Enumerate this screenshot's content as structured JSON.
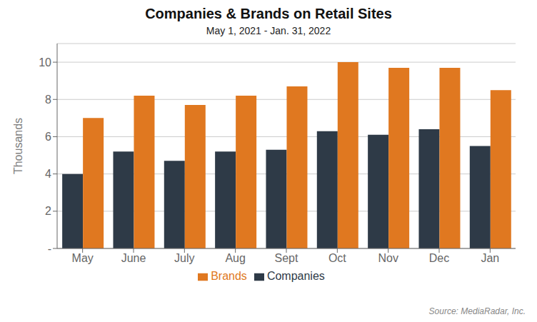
{
  "chart_data": {
    "type": "bar",
    "title": "Companies & Brands on Retail Sites",
    "subtitle": "May 1, 2021 - Jan. 31, 2022",
    "ylabel": "Thousands",
    "annotations": [
      "Source: MediaRadar, Inc."
    ],
    "categories": [
      "May",
      "June",
      "July",
      "Aug",
      "Sept",
      "Oct",
      "Nov",
      "Dec",
      "Jan"
    ],
    "series": [
      {
        "name": "Companies",
        "color": "#2E3A47",
        "values": [
          4.0,
          5.2,
          4.7,
          5.2,
          5.3,
          6.3,
          6.1,
          6.4,
          5.5
        ]
      },
      {
        "name": "Brands",
        "color": "#E07820",
        "values": [
          7.0,
          8.2,
          7.7,
          8.2,
          8.7,
          10.0,
          9.7,
          9.7,
          8.5
        ]
      }
    ],
    "ylim": [
      0,
      11
    ],
    "yticks": [
      {
        "value": 0,
        "label": "-"
      },
      2,
      4,
      6,
      8,
      10
    ],
    "grid": true,
    "legend": "bottom"
  }
}
